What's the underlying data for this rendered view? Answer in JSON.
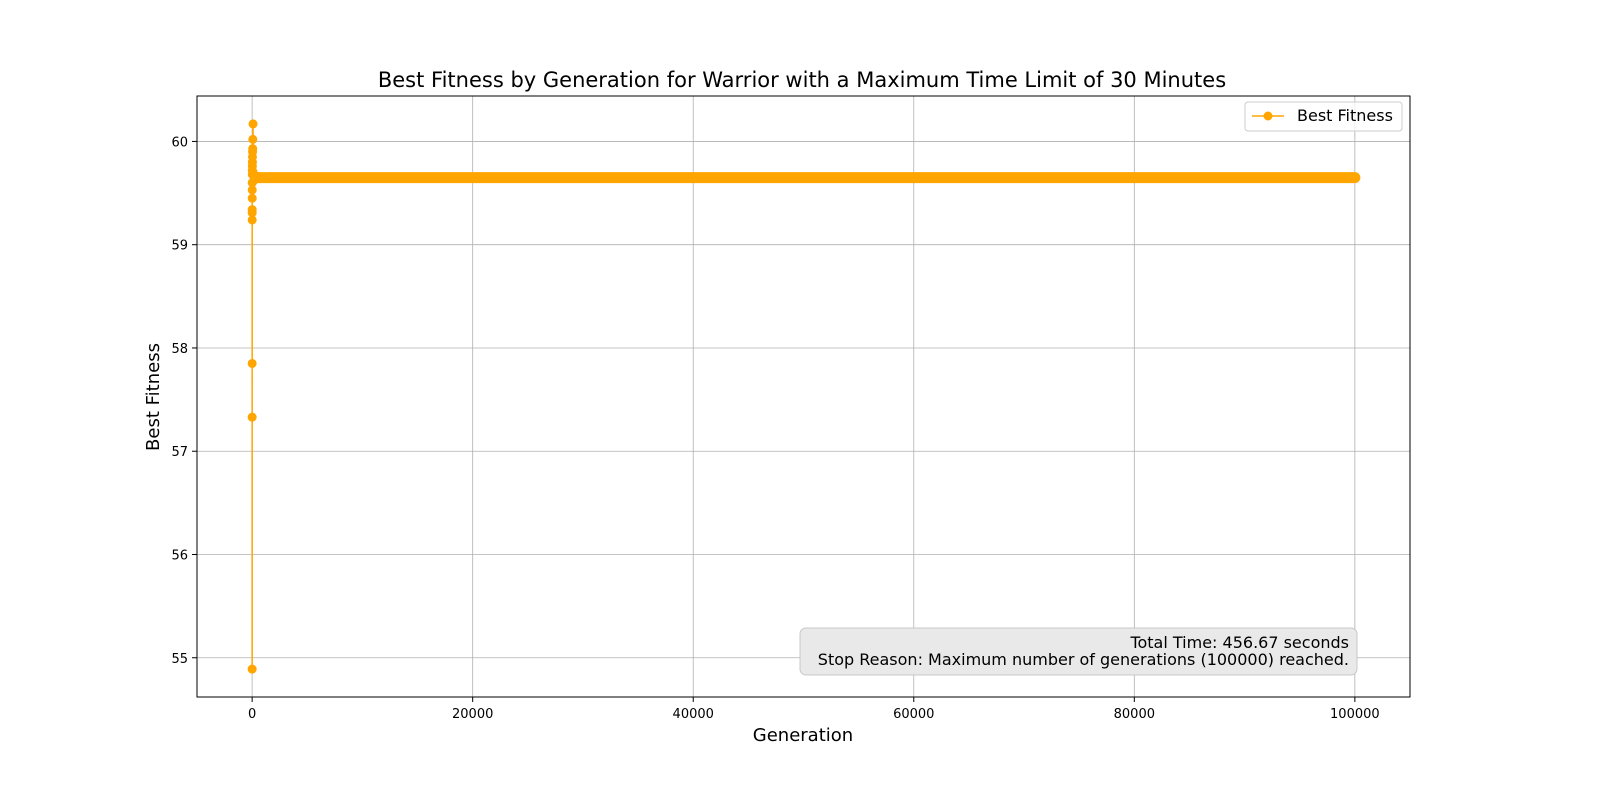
{
  "chart_data": {
    "type": "line",
    "title": "Best Fitness by Generation for Warrior with a Maximum Time Limit of 30 Minutes",
    "xlabel": "Generation",
    "ylabel": "Best Fitness",
    "xlim": [
      -5000,
      105000
    ],
    "ylim": [
      54.62,
      60.44
    ],
    "xticks": [
      0,
      20000,
      40000,
      60000,
      80000,
      100000
    ],
    "yticks": [
      55,
      56,
      57,
      58,
      59,
      60
    ],
    "grid": true,
    "legend_position": "top-right",
    "series": [
      {
        "name": "Best Fitness",
        "color": "#FFA500",
        "marker": "circle",
        "x": [
          0,
          1,
          2,
          3,
          4,
          5,
          6,
          8,
          10,
          12,
          15,
          20,
          25,
          30,
          40,
          50,
          60,
          80,
          100,
          150,
          200,
          300,
          500
        ],
        "y": [
          54.89,
          57.33,
          57.85,
          59.31,
          59.34,
          59.24,
          59.45,
          59.53,
          59.6,
          59.68,
          59.72,
          59.76,
          59.8,
          59.85,
          59.9,
          59.93,
          60.02,
          60.17,
          59.7,
          59.62,
          59.66,
          59.65,
          59.66
        ],
        "plateau": {
          "x_start": 500,
          "x_end": 100000,
          "y": 59.65
        }
      }
    ],
    "annotation": {
      "lines": [
        "Total Time: 456.67 seconds",
        "Stop Reason: Maximum number of generations (100000) reached."
      ],
      "position": "bottom-right"
    }
  }
}
